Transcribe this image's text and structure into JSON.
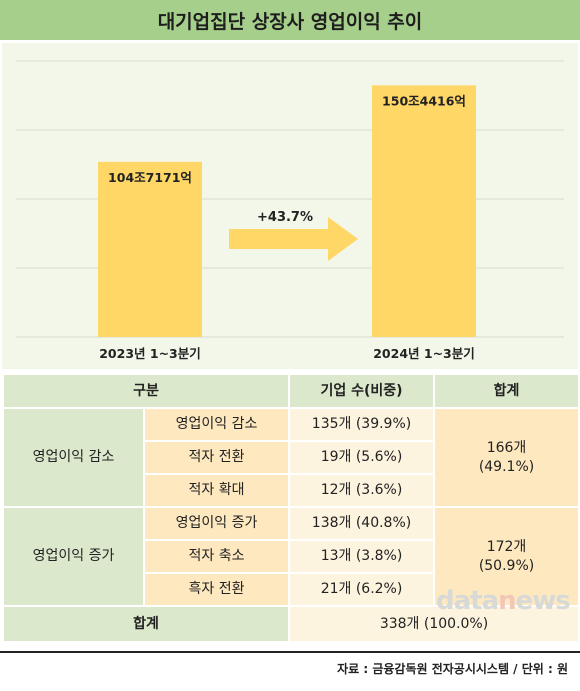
{
  "title": "대기업집단 상장사 영업이익 추이",
  "chart_data": {
    "type": "bar",
    "categories": [
      "2023년 1~3분기",
      "2024년 1~3분기"
    ],
    "values": [
      1047171,
      1504416
    ],
    "value_labels": [
      "104조7171억",
      "150조4416억"
    ],
    "growth_label": "+43.7%",
    "ylim": [
      0,
      1650000
    ],
    "grid": true,
    "colors": {
      "bar": "#fed766",
      "arrow": "#fed766",
      "grid": "#d8dcd2"
    }
  },
  "table": {
    "headers": [
      "구분",
      "기업 수(비중)",
      "합계"
    ],
    "groups": [
      {
        "category": "영업이익 감소",
        "rows": [
          {
            "label": "영업이익 감소",
            "value": "135개 (39.9%)"
          },
          {
            "label": "적자 전환",
            "value": "19개 (5.6%)"
          },
          {
            "label": "적자 확대",
            "value": "12개 (3.6%)"
          }
        ],
        "total_count": "166개",
        "total_pct": "(49.1%)"
      },
      {
        "category": "영업이익 증가",
        "rows": [
          {
            "label": "영업이익 증가",
            "value": "138개 (40.8%)"
          },
          {
            "label": "적자 축소",
            "value": "13개 (3.8%)"
          },
          {
            "label": "흑자 전환",
            "value": "21개 (6.2%)"
          }
        ],
        "total_count": "172개",
        "total_pct": "(50.9%)"
      }
    ],
    "grand_total_label": "합계",
    "grand_total_value": "338개 (100.0%)"
  },
  "watermark": {
    "part1": "data",
    "part2": "n",
    "part3": "ews"
  },
  "source": "자료 : 금융감독원 전자공시시스템 / 단위 : 원",
  "colors": {
    "title_bg": "#a6cf8c",
    "panel_bg": "#f3f7ea",
    "header_bg": "#dbe8cc",
    "sub_bg": "#fde8bf",
    "value_bg": "#fdf4e0"
  }
}
